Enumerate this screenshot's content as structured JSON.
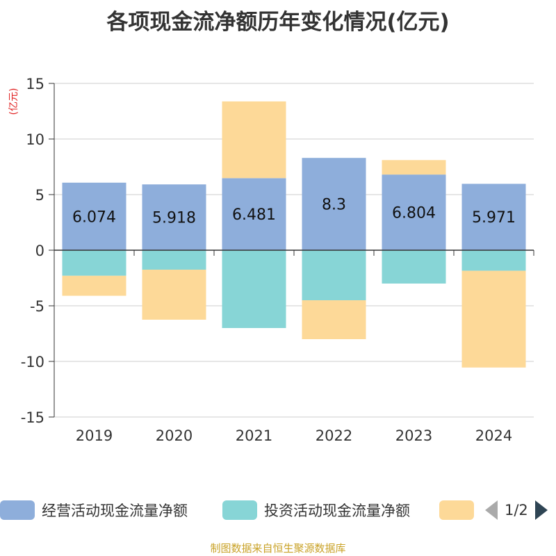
{
  "title": "各项现金流净额历年变化情况(亿元)",
  "chart_data": {
    "type": "bar",
    "stacked": true,
    "ylabel": "(亿元)",
    "ylim": [
      -15,
      15
    ],
    "yticks": [
      15,
      10,
      5,
      0,
      -5,
      -10,
      -15
    ],
    "ytick_labels": [
      "15",
      "10",
      "5",
      "0",
      "-5",
      "-10",
      "-15"
    ],
    "categories": [
      "2019",
      "2020",
      "2021",
      "2022",
      "2023",
      "2024"
    ],
    "grid": true,
    "legend_position": "bottom",
    "series": [
      {
        "name": "经营活动现金流量净额",
        "color": "#8eaedb",
        "values": [
          6.074,
          5.918,
          6.481,
          8.3,
          6.804,
          5.971
        ],
        "labels": [
          "6.074",
          "5.918",
          "6.481",
          "8.3",
          "6.804",
          "5.971"
        ]
      },
      {
        "name": "投资活动现金流量净额",
        "color": "#87d5d6",
        "values": [
          -2.3,
          -1.75,
          -7.0,
          -4.5,
          -3.0,
          -1.85
        ]
      },
      {
        "name": "",
        "color": "#fdd998",
        "values": [
          -1.8,
          -4.5,
          6.9,
          -3.5,
          1.3,
          -8.7
        ]
      }
    ]
  },
  "legend": {
    "page_text": "1/2"
  },
  "source_note": "制图数据来自恒生聚源数据库"
}
